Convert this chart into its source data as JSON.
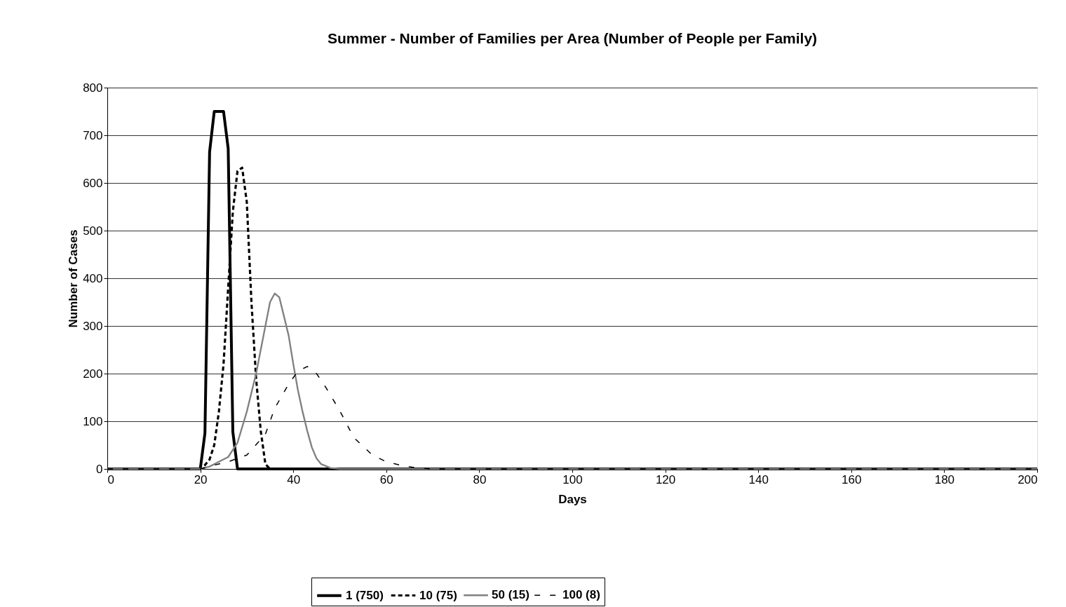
{
  "chart_data": {
    "type": "line",
    "title": "Summer - Number of Families per Area (Number of People per Family)",
    "xlabel": "Days",
    "ylabel": "Number of Cases",
    "xlim": [
      0,
      200
    ],
    "xticks": [
      0,
      20,
      40,
      60,
      80,
      100,
      120,
      140,
      160,
      180,
      200
    ],
    "ylim": [
      0,
      800
    ],
    "yticks": [
      0,
      100,
      200,
      300,
      400,
      500,
      600,
      700,
      800
    ],
    "grid": "y",
    "legend": "bottom",
    "marker": "none",
    "series": [
      {
        "name": "1 (750)",
        "color": "#000000",
        "line_style": "solid",
        "x": [
          0,
          20,
          21,
          22,
          23,
          24,
          25,
          26,
          27,
          28,
          200
        ],
        "values": [
          0,
          0,
          75,
          665,
          750,
          750,
          750,
          672,
          78,
          0,
          0
        ]
      },
      {
        "name": "10 (75)",
        "color": "#000000",
        "line_style": "dashed",
        "x": [
          0,
          20,
          21,
          22,
          23,
          24,
          25,
          26,
          27,
          28,
          29,
          30,
          31,
          32,
          33,
          34,
          35,
          200
        ],
        "values": [
          0,
          0,
          8,
          20,
          50,
          120,
          220,
          380,
          540,
          625,
          632,
          560,
          350,
          190,
          80,
          10,
          0,
          0
        ]
      },
      {
        "name": "50 (15)",
        "color": "#808080",
        "line_style": "solid",
        "x": [
          0,
          20,
          22,
          24,
          26,
          28,
          30,
          32,
          34,
          35,
          36,
          37,
          38,
          39,
          40,
          41,
          42,
          43,
          44,
          45,
          46,
          48,
          50,
          200
        ],
        "values": [
          0,
          0,
          5,
          15,
          25,
          55,
          120,
          200,
          300,
          350,
          368,
          360,
          320,
          280,
          220,
          165,
          120,
          80,
          45,
          22,
          10,
          2,
          0,
          0
        ]
      },
      {
        "name": "100 (8)",
        "color": "#000000",
        "line_style": "dashed",
        "x": [
          0,
          20,
          23,
          26,
          30,
          34,
          36,
          39,
          41,
          43,
          45,
          47,
          50,
          53,
          57,
          60,
          63,
          66,
          70,
          200
        ],
        "values": [
          0,
          0,
          8,
          15,
          29,
          73,
          127,
          178,
          205,
          215,
          200,
          171,
          122,
          66,
          29,
          15,
          8,
          3,
          0,
          0
        ]
      }
    ]
  }
}
